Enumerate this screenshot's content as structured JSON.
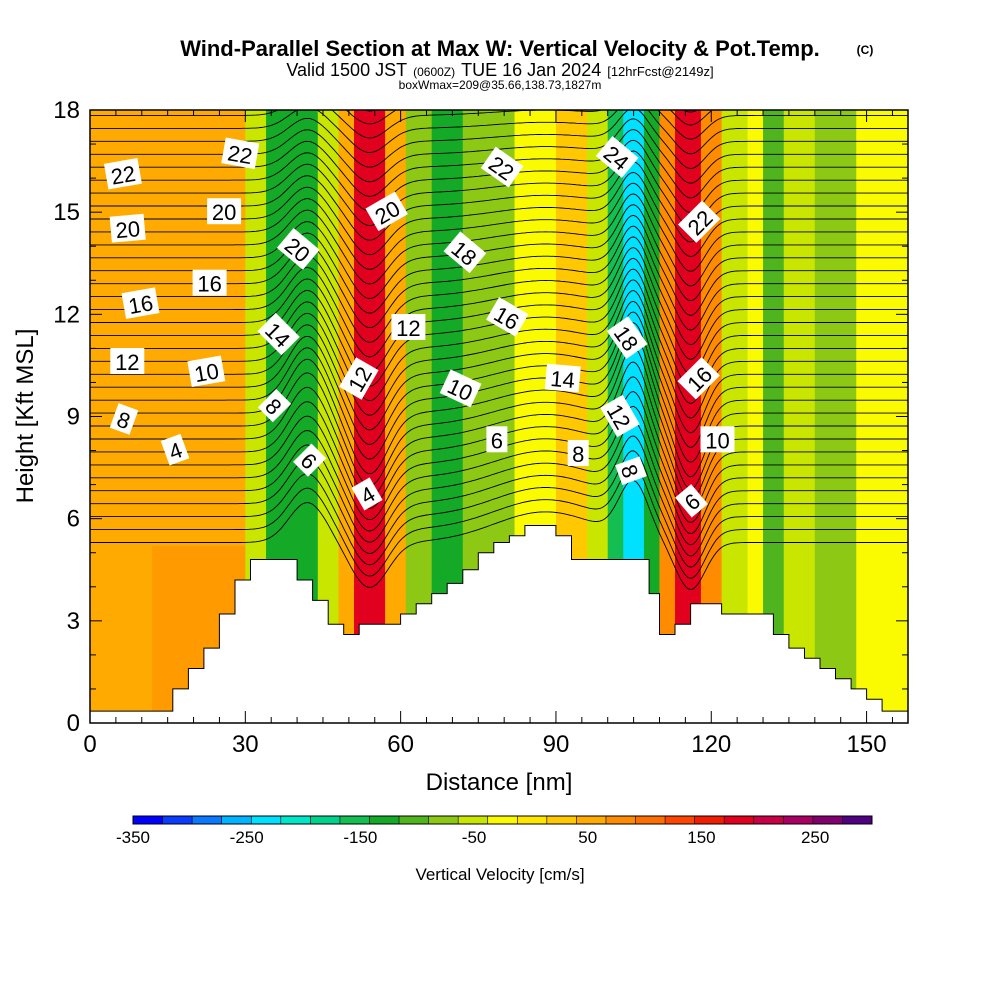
{
  "chart_data": {
    "type": "heatmap",
    "title": "Wind-Parallel Section at Max W: Vertical Velocity & Pot.Temp.",
    "copyright": "(C)",
    "subtitle_valid": "Valid 1500 JST",
    "subtitle_utc": "(0600Z)",
    "subtitle_date": "TUE 16 Jan 2024",
    "subtitle_fcst": "[12hrFcst@2149z]",
    "subtitle_box": "boxWmax=209@35.66,138.73,1827m",
    "xlabel": "Distance [nm]",
    "ylabel": "Height [Kft MSL]",
    "xlim": [
      0,
      158
    ],
    "ylim": [
      0,
      18
    ],
    "x_ticks": [
      0,
      30,
      60,
      90,
      120,
      150
    ],
    "y_ticks": [
      0,
      3,
      6,
      9,
      12,
      15,
      18
    ],
    "colorbar": {
      "label": "Vertical Velocity [cm/s]",
      "range": [
        -350,
        300
      ],
      "tick_labels": [
        "-350",
        "-250",
        "-150",
        "-50",
        "50",
        "150",
        "250"
      ],
      "colors": [
        "#0000ff",
        "#0a3cff",
        "#0a78ff",
        "#00b4ff",
        "#00e1ff",
        "#00e6c8",
        "#00d28c",
        "#14be50",
        "#14aa28",
        "#50b41e",
        "#8cc814",
        "#c8e600",
        "#fafa00",
        "#ffe600",
        "#ffc800",
        "#ffaa00",
        "#ff8c00",
        "#ff6e00",
        "#ff4600",
        "#f01e00",
        "#e1001e",
        "#c80046",
        "#aa0064",
        "#82006e",
        "#500082"
      ]
    },
    "vertical_velocity_bands": [
      {
        "x_start": 0,
        "x_end": 30,
        "w": 40
      },
      {
        "x_start": 30,
        "x_end": 34,
        "w": -40
      },
      {
        "x_start": 34,
        "x_end": 44,
        "w": -140
      },
      {
        "x_start": 44,
        "x_end": 48,
        "w": -60
      },
      {
        "x_start": 48,
        "x_end": 51,
        "w": 60
      },
      {
        "x_start": 51,
        "x_end": 57,
        "w": 175
      },
      {
        "x_start": 57,
        "x_end": 61,
        "w": 60
      },
      {
        "x_start": 61,
        "x_end": 66,
        "w": -70
      },
      {
        "x_start": 66,
        "x_end": 72,
        "w": -120
      },
      {
        "x_start": 72,
        "x_end": 82,
        "w": -70
      },
      {
        "x_start": 82,
        "x_end": 90,
        "w": -30
      },
      {
        "x_start": 90,
        "x_end": 96,
        "w": 20
      },
      {
        "x_start": 96,
        "x_end": 100,
        "w": -60
      },
      {
        "x_start": 100,
        "x_end": 103,
        "w": -150
      },
      {
        "x_start": 103,
        "x_end": 107,
        "w": -240
      },
      {
        "x_start": 107,
        "x_end": 110,
        "w": -130
      },
      {
        "x_start": 110,
        "x_end": 113,
        "w": 80
      },
      {
        "x_start": 113,
        "x_end": 118,
        "w": 190
      },
      {
        "x_start": 118,
        "x_end": 122,
        "w": 70
      },
      {
        "x_start": 122,
        "x_end": 127,
        "w": -50
      },
      {
        "x_start": 127,
        "x_end": 130,
        "w": -20
      },
      {
        "x_start": 130,
        "x_end": 134,
        "w": -110
      },
      {
        "x_start": 134,
        "x_end": 140,
        "w": -40
      },
      {
        "x_start": 140,
        "x_end": 148,
        "w": -70
      },
      {
        "x_start": 148,
        "x_end": 158,
        "w": -20
      }
    ],
    "terrain": [
      [
        0,
        0.35
      ],
      [
        16,
        0.35
      ],
      [
        16,
        1.0
      ],
      [
        19,
        1.0
      ],
      [
        19,
        1.6
      ],
      [
        22,
        1.6
      ],
      [
        22,
        2.2
      ],
      [
        25,
        2.2
      ],
      [
        25,
        3.2
      ],
      [
        28,
        3.2
      ],
      [
        28,
        4.2
      ],
      [
        31,
        4.2
      ],
      [
        31,
        4.8
      ],
      [
        40,
        4.8
      ],
      [
        40,
        4.2
      ],
      [
        43,
        4.2
      ],
      [
        43,
        3.6
      ],
      [
        46,
        3.6
      ],
      [
        46,
        2.9
      ],
      [
        49,
        2.9
      ],
      [
        49,
        2.6
      ],
      [
        52,
        2.6
      ],
      [
        52,
        2.9
      ],
      [
        60,
        2.9
      ],
      [
        60,
        3.2
      ],
      [
        63,
        3.2
      ],
      [
        63,
        3.5
      ],
      [
        66,
        3.5
      ],
      [
        66,
        3.8
      ],
      [
        69,
        3.8
      ],
      [
        69,
        4.1
      ],
      [
        72,
        4.1
      ],
      [
        72,
        4.5
      ],
      [
        75,
        4.5
      ],
      [
        75,
        5.0
      ],
      [
        78,
        5.0
      ],
      [
        78,
        5.3
      ],
      [
        81,
        5.3
      ],
      [
        81,
        5.5
      ],
      [
        84,
        5.5
      ],
      [
        84,
        5.8
      ],
      [
        90,
        5.8
      ],
      [
        90,
        5.5
      ],
      [
        93,
        5.5
      ],
      [
        93,
        4.8
      ],
      [
        108,
        4.8
      ],
      [
        108,
        3.8
      ],
      [
        110,
        3.8
      ],
      [
        110,
        2.6
      ],
      [
        113,
        2.6
      ],
      [
        113,
        2.9
      ],
      [
        116,
        2.9
      ],
      [
        116,
        3.5
      ],
      [
        122,
        3.5
      ],
      [
        122,
        3.2
      ],
      [
        132,
        3.2
      ],
      [
        132,
        2.6
      ],
      [
        135,
        2.6
      ],
      [
        135,
        2.2
      ],
      [
        138,
        2.2
      ],
      [
        138,
        1.9
      ],
      [
        141,
        1.9
      ],
      [
        141,
        1.6
      ],
      [
        144,
        1.6
      ],
      [
        144,
        1.3
      ],
      [
        147,
        1.3
      ],
      [
        147,
        1.0
      ],
      [
        150,
        1.0
      ],
      [
        150,
        0.7
      ],
      [
        153,
        0.7
      ],
      [
        153,
        0.35
      ],
      [
        156,
        0.35
      ],
      [
        156,
        0.35
      ],
      [
        158,
        0.35
      ]
    ],
    "contour_labels": [
      {
        "text": "22",
        "x": 6.4,
        "y": 16.1,
        "rot": -10
      },
      {
        "text": "22",
        "x": 29,
        "y": 16.7,
        "rot": 10
      },
      {
        "text": "22",
        "x": 79.5,
        "y": 16.3,
        "rot": 35
      },
      {
        "text": "24",
        "x": 101.7,
        "y": 16.6,
        "rot": 40
      },
      {
        "text": "20",
        "x": 7.3,
        "y": 14.5,
        "rot": -5
      },
      {
        "text": "20",
        "x": 25.9,
        "y": 15.0,
        "rot": 0
      },
      {
        "text": "20",
        "x": 57.4,
        "y": 15.0,
        "rot": -30
      },
      {
        "text": "22",
        "x": 117.8,
        "y": 14.7,
        "rot": -45
      },
      {
        "text": "20",
        "x": 40.1,
        "y": 13.9,
        "rot": 40
      },
      {
        "text": "18",
        "x": 72.3,
        "y": 13.8,
        "rot": 40
      },
      {
        "text": "16",
        "x": 9.8,
        "y": 12.3,
        "rot": -10
      },
      {
        "text": "16",
        "x": 23.1,
        "y": 12.9,
        "rot": 0
      },
      {
        "text": "16",
        "x": 80.5,
        "y": 11.9,
        "rot": 30
      },
      {
        "text": "14",
        "x": 36.3,
        "y": 11.4,
        "rot": 45
      },
      {
        "text": "12",
        "x": 61.5,
        "y": 11.6,
        "rot": 0
      },
      {
        "text": "18",
        "x": 103.6,
        "y": 11.3,
        "rot": 55
      },
      {
        "text": "12",
        "x": 7.2,
        "y": 10.6,
        "rot": 0
      },
      {
        "text": "10",
        "x": 22.5,
        "y": 10.3,
        "rot": -10
      },
      {
        "text": "12",
        "x": 52.1,
        "y": 10.1,
        "rot": -60
      },
      {
        "text": "10",
        "x": 71.5,
        "y": 9.8,
        "rot": 25
      },
      {
        "text": "14",
        "x": 91.3,
        "y": 10.1,
        "rot": 5
      },
      {
        "text": "16",
        "x": 117.7,
        "y": 10.1,
        "rot": -45
      },
      {
        "text": "8",
        "x": 6.5,
        "y": 8.9,
        "rot": 20
      },
      {
        "text": "8",
        "x": 35.5,
        "y": 9.3,
        "rot": 45
      },
      {
        "text": "12",
        "x": 102.2,
        "y": 9.0,
        "rot": 60
      },
      {
        "text": "4",
        "x": 16.5,
        "y": 8.0,
        "rot": -20
      },
      {
        "text": "6",
        "x": 78.6,
        "y": 8.3,
        "rot": 0
      },
      {
        "text": "8",
        "x": 94.3,
        "y": 7.9,
        "rot": 0
      },
      {
        "text": "10",
        "x": 121.2,
        "y": 8.3,
        "rot": 0
      },
      {
        "text": "6",
        "x": 42.3,
        "y": 7.7,
        "rot": 45
      },
      {
        "text": "8",
        "x": 104.3,
        "y": 7.4,
        "rot": 70
      },
      {
        "text": "4",
        "x": 53.6,
        "y": 6.7,
        "rot": -30
      },
      {
        "text": "6",
        "x": 116.3,
        "y": 6.5,
        "rot": -40
      }
    ]
  }
}
